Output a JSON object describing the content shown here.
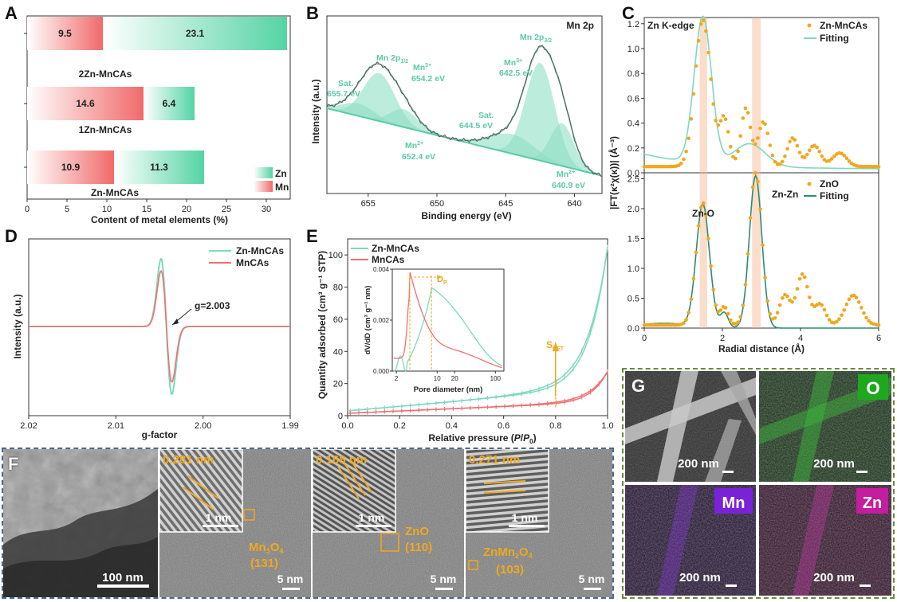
{
  "panel_letters": {
    "a": "A",
    "b": "B",
    "c": "C",
    "d": "D",
    "e": "E",
    "f": "F",
    "g": "G"
  },
  "colors": {
    "zn": "#5cd6aa",
    "mn": "#f07070",
    "orange": "#f0a81e",
    "teal": "#7ed8c0",
    "darkgreen": "#2e8b6e",
    "gray": "#666666"
  },
  "panelA": {
    "xlabel": "Content of metal elements (%)",
    "xlim": [
      0,
      33
    ],
    "xticks": [
      0,
      5,
      10,
      15,
      20,
      25,
      30
    ],
    "legend": [
      {
        "name": "Zn",
        "color": "#5cd6aa"
      },
      {
        "name": "Mn",
        "color": "#f07070"
      }
    ],
    "bars": [
      {
        "label": "2Zn-MnCAs",
        "mn": 9.5,
        "zn": 23.1,
        "mn_text": "9.5",
        "zn_text": "23.1"
      },
      {
        "label": "1Zn-MnCAs",
        "mn": 14.6,
        "zn": 6.4,
        "mn_text": "14.6",
        "zn_text": "6.4"
      },
      {
        "label": "Zn-MnCAs",
        "mn": 10.9,
        "zn": 11.3,
        "mn_text": "10.9",
        "zn_text": "11.3"
      }
    ]
  },
  "panelB": {
    "title": "Mn 2p",
    "xlabel": "Binding energy (eV)",
    "ylabel": "Intensity (a.u.)",
    "xlim": [
      658,
      638
    ],
    "xticks": [
      655,
      650,
      645,
      640
    ],
    "annotations": [
      {
        "text": "Mn 2p1/2",
        "x": 654.4
      },
      {
        "text": "Mn3+ 654.2 eV",
        "x": 653.0
      },
      {
        "text": "Sat. 655.7 eV",
        "x": 656.7
      },
      {
        "text": "Mn2+ 652.4 eV",
        "x": 652.4
      },
      {
        "text": "Sat. 644.5 eV",
        "x": 645.5
      },
      {
        "text": "Mn 2p3/2",
        "x": 642.6
      },
      {
        "text": "Mn3+ 642.5 eV",
        "x": 643.6
      },
      {
        "text": "Mn2+ 640.9 eV",
        "x": 640.5
      }
    ],
    "labels": {
      "p12": "Mn 2p",
      "p12_sub": "1/2",
      "p32": "Mn 2p",
      "p32_sub": "3/2",
      "mn3a": "Mn",
      "mn3a_sup": "3+",
      "mn3a_val": "654.2 eV",
      "sat1": "Sat.",
      "sat1_val": "655.7 eV",
      "mn2a": "Mn",
      "mn2a_sup": "2+",
      "mn2a_val": "652.4 eV",
      "sat2": "Sat.",
      "sat2_val": "644.5 eV",
      "mn3b": "Mn",
      "mn3b_sup": "3+",
      "mn3b_val": "642.5 eV",
      "mn2b": "Mn",
      "mn2b_sup": "2+",
      "mn2b_val": "640.9 eV"
    }
  },
  "panelC": {
    "title": "Zn K-edge",
    "xlabel": "Radial distance (Å)",
    "ylabel": "|FT(κ²χ(κ))| (Å⁻³)",
    "xlim": [
      0,
      6
    ],
    "xticks": [
      0,
      2,
      4,
      6
    ],
    "top": {
      "ylim": [
        0,
        1.25
      ],
      "yticks": [
        0.0,
        0.2,
        0.4,
        0.6,
        0.8,
        1.0,
        1.2
      ],
      "legend": [
        "Zn-MnCAs",
        "Fitting"
      ]
    },
    "bottom": {
      "ylim": [
        0,
        2.6
      ],
      "yticks": [
        0.0,
        0.5,
        1.0,
        1.5,
        2.0,
        2.5
      ],
      "legend": [
        "ZnO",
        "Fitting"
      ],
      "peak_labels": [
        "Zn-O",
        "Zn-Zn"
      ]
    }
  },
  "panelD": {
    "xlabel": "g-factor",
    "ylabel": "Intensity (a.u.)",
    "xlim": [
      2.02,
      1.99
    ],
    "xticks": [
      "2.02",
      "2.01",
      "2.00",
      "1.99"
    ],
    "legend": [
      {
        "name": "Zn-MnCAs",
        "color": "#7ed8c0"
      },
      {
        "name": "MnCAs",
        "color": "#f07070"
      }
    ],
    "annotation": "g=2.003"
  },
  "panelE": {
    "xlabel": "Relative pressure (P/P0)",
    "xlabel_main": "Relative pressure (",
    "xlabel_var": "P",
    "xlabel_slash": "/",
    "xlabel_var2": "P",
    "xlabel_sub": "0",
    "xlabel_close": ")",
    "ylabel": "Quantity adsorbed (cm³ g⁻¹ STP)",
    "xlim": [
      0,
      1.0
    ],
    "ylim": [
      0,
      110
    ],
    "xticks": [
      "0.0",
      "0.2",
      "0.4",
      "0.6",
      "0.8",
      "1.0"
    ],
    "yticks": [
      0,
      20,
      40,
      60,
      80,
      100
    ],
    "legend": [
      {
        "name": "Zn-MnCAs",
        "color": "#7ed8c0"
      },
      {
        "name": "MnCAs",
        "color": "#f07070"
      }
    ],
    "inset": {
      "xlabel": "Pore diameter (nm)",
      "ylabel": "dV/dD (cm³ g⁻¹ nm)",
      "yticks": [
        "0.000",
        "0.002",
        "0.004"
      ],
      "xticks": [
        "2",
        "10",
        "20",
        "100"
      ],
      "dp_label": "D",
      "dp_sub": "P"
    },
    "sbet_label": "S",
    "sbet_sub": "BET"
  },
  "panelF": {
    "scale_100nm": "100 nm",
    "scale_5nm": "5 nm",
    "scale_1nm": "1 nm",
    "img2": {
      "d": "0.281 nm",
      "phase": "Mn",
      "phase_sub": "3",
      "phase_o": "O",
      "phase_sub2": "4",
      "hkl": "(131)"
    },
    "img3": {
      "d": "0.168 nm",
      "phase": "ZnO",
      "hkl": "(110)"
    },
    "img4": {
      "d": "0.271 nm",
      "phase": "ZnMn",
      "phase_sub": "2",
      "phase_o": "O",
      "phase_sub2": "4",
      "hkl": "(103)"
    }
  },
  "panelG": {
    "scale": "200 nm",
    "tiles": [
      {
        "name": "sem",
        "badge": ""
      },
      {
        "name": "O",
        "badge": "O",
        "color": "#22aa22"
      },
      {
        "name": "Mn",
        "badge": "Mn",
        "color": "#8a2be2"
      },
      {
        "name": "Zn",
        "badge": "Zn",
        "color": "#cc22aa"
      }
    ]
  }
}
